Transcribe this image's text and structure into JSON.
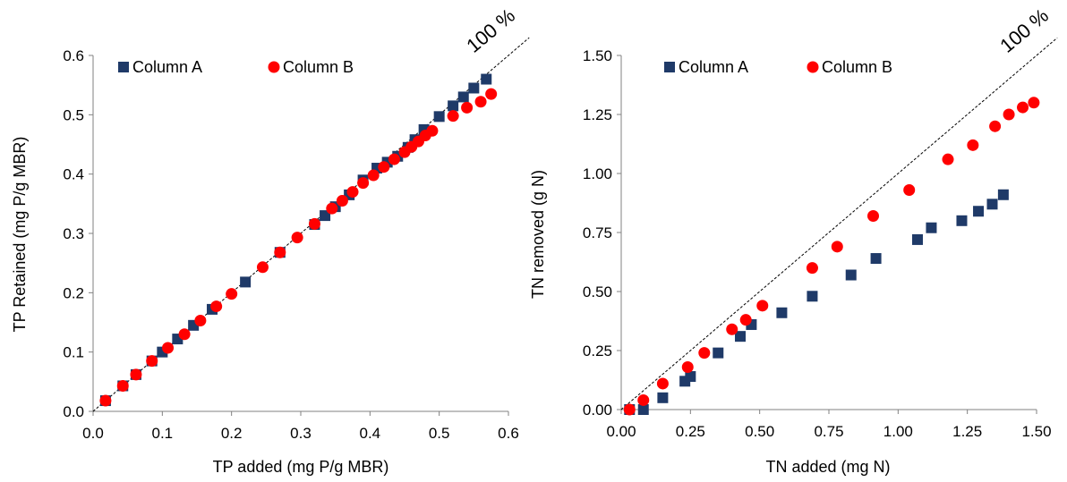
{
  "colors": {
    "column_a": "#1f3a68",
    "column_b": "#ff0000",
    "axis": "#808080",
    "reference": "#000000"
  },
  "chart_data": [
    {
      "type": "scatter",
      "title": "",
      "xlabel": "TP added (mg P/g MBR)",
      "ylabel": "TP Retained (mg P/g MBR)",
      "xlim": [
        0,
        0.6
      ],
      "ylim": [
        0,
        0.6
      ],
      "x_ticks": [
        "0.0",
        "0.1",
        "0.2",
        "0.3",
        "0.4",
        "0.5",
        "0.6"
      ],
      "y_ticks": [
        "0.0",
        "0.1",
        "0.2",
        "0.3",
        "0.4",
        "0.5",
        "0.6"
      ],
      "grid": false,
      "legend_position": "top-left",
      "reference_line": {
        "label": "100 %",
        "slope": 1
      },
      "series": [
        {
          "name": "Column A",
          "marker": "square",
          "color": "#1f3a68",
          "points": [
            [
              0.018,
              0.018
            ],
            [
              0.043,
              0.043
            ],
            [
              0.062,
              0.062
            ],
            [
              0.085,
              0.085
            ],
            [
              0.1,
              0.1
            ],
            [
              0.122,
              0.122
            ],
            [
              0.145,
              0.145
            ],
            [
              0.172,
              0.172
            ],
            [
              0.22,
              0.218
            ],
            [
              0.27,
              0.268
            ],
            [
              0.32,
              0.315
            ],
            [
              0.335,
              0.33
            ],
            [
              0.35,
              0.345
            ],
            [
              0.37,
              0.365
            ],
            [
              0.39,
              0.39
            ],
            [
              0.41,
              0.41
            ],
            [
              0.425,
              0.42
            ],
            [
              0.44,
              0.43
            ],
            [
              0.455,
              0.445
            ],
            [
              0.465,
              0.458
            ],
            [
              0.478,
              0.475
            ],
            [
              0.5,
              0.497
            ],
            [
              0.52,
              0.515
            ],
            [
              0.535,
              0.53
            ],
            [
              0.55,
              0.545
            ],
            [
              0.568,
              0.56
            ]
          ]
        },
        {
          "name": "Column B",
          "marker": "circle",
          "color": "#ff0000",
          "points": [
            [
              0.018,
              0.018
            ],
            [
              0.043,
              0.043
            ],
            [
              0.062,
              0.062
            ],
            [
              0.085,
              0.085
            ],
            [
              0.108,
              0.107
            ],
            [
              0.132,
              0.13
            ],
            [
              0.155,
              0.153
            ],
            [
              0.178,
              0.177
            ],
            [
              0.2,
              0.198
            ],
            [
              0.245,
              0.243
            ],
            [
              0.27,
              0.268
            ],
            [
              0.295,
              0.293
            ],
            [
              0.32,
              0.316
            ],
            [
              0.345,
              0.342
            ],
            [
              0.36,
              0.355
            ],
            [
              0.375,
              0.37
            ],
            [
              0.39,
              0.385
            ],
            [
              0.405,
              0.398
            ],
            [
              0.42,
              0.412
            ],
            [
              0.435,
              0.425
            ],
            [
              0.45,
              0.437
            ],
            [
              0.46,
              0.446
            ],
            [
              0.47,
              0.455
            ],
            [
              0.48,
              0.465
            ],
            [
              0.49,
              0.473
            ],
            [
              0.52,
              0.498
            ],
            [
              0.54,
              0.512
            ],
            [
              0.56,
              0.522
            ],
            [
              0.575,
              0.535
            ]
          ]
        }
      ]
    },
    {
      "type": "scatter",
      "title": "",
      "xlabel": "TN added (mg N)",
      "ylabel": "TN removed (g N)",
      "xlim": [
        0,
        1.5
      ],
      "ylim": [
        0,
        1.5
      ],
      "x_ticks": [
        "0.00",
        "0.25",
        "0.50",
        "0.75",
        "1.00",
        "1.25",
        "1.50"
      ],
      "y_ticks": [
        "0.00",
        "0.25",
        "0.50",
        "0.75",
        "1.00",
        "1.25",
        "1.50"
      ],
      "grid": false,
      "legend_position": "top-left",
      "reference_line": {
        "label": "100 %",
        "slope": 1
      },
      "series": [
        {
          "name": "Column A",
          "marker": "square",
          "color": "#1f3a68",
          "points": [
            [
              0.03,
              0.0
            ],
            [
              0.08,
              0.0
            ],
            [
              0.15,
              0.05
            ],
            [
              0.23,
              0.12
            ],
            [
              0.25,
              0.14
            ],
            [
              0.35,
              0.24
            ],
            [
              0.43,
              0.31
            ],
            [
              0.47,
              0.36
            ],
            [
              0.58,
              0.41
            ],
            [
              0.69,
              0.48
            ],
            [
              0.83,
              0.57
            ],
            [
              0.92,
              0.64
            ],
            [
              1.07,
              0.72
            ],
            [
              1.12,
              0.77
            ],
            [
              1.23,
              0.8
            ],
            [
              1.29,
              0.84
            ],
            [
              1.34,
              0.87
            ],
            [
              1.38,
              0.91
            ]
          ]
        },
        {
          "name": "Column B",
          "marker": "circle",
          "color": "#ff0000",
          "points": [
            [
              0.03,
              0.0
            ],
            [
              0.08,
              0.04
            ],
            [
              0.15,
              0.11
            ],
            [
              0.24,
              0.18
            ],
            [
              0.3,
              0.24
            ],
            [
              0.4,
              0.34
            ],
            [
              0.45,
              0.38
            ],
            [
              0.51,
              0.44
            ],
            [
              0.69,
              0.6
            ],
            [
              0.78,
              0.69
            ],
            [
              0.91,
              0.82
            ],
            [
              1.04,
              0.93
            ],
            [
              1.18,
              1.06
            ],
            [
              1.27,
              1.12
            ],
            [
              1.35,
              1.2
            ],
            [
              1.4,
              1.25
            ],
            [
              1.45,
              1.28
            ],
            [
              1.49,
              1.3
            ]
          ]
        }
      ]
    }
  ]
}
